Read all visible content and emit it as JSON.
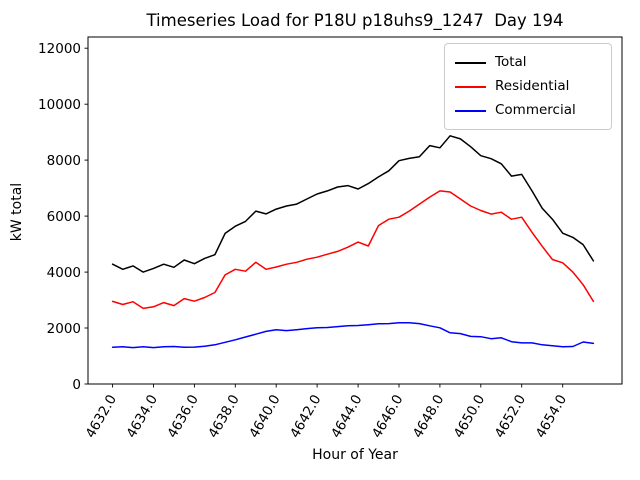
{
  "chart_data": {
    "type": "line",
    "title": "Timeseries Load for P18U p18uhs9_1247  Day 194",
    "xlabel": "Hour of Year",
    "ylabel": "kW total",
    "xlim": [
      4630.8,
      4656.9
    ],
    "ylim": [
      0,
      12400
    ],
    "grid": false,
    "legend_position": "upper right",
    "x_ticks": [
      4632,
      4634,
      4636,
      4638,
      4640,
      4642,
      4644,
      4646,
      4648,
      4650,
      4652,
      4654
    ],
    "x_tick_labels": [
      "4632.0",
      "4634.0",
      "4636.0",
      "4638.0",
      "4640.0",
      "4642.0",
      "4644.0",
      "4646.0",
      "4648.0",
      "4650.0",
      "4652.0",
      "4654.0"
    ],
    "y_ticks": [
      0,
      2000,
      4000,
      6000,
      8000,
      10000,
      12000
    ],
    "y_tick_labels": [
      "0",
      "2000",
      "4000",
      "6000",
      "8000",
      "10000",
      "12000"
    ],
    "x": [
      4632.0,
      4632.5,
      4633.0,
      4633.5,
      4634.0,
      4634.5,
      4635.0,
      4635.5,
      4636.0,
      4636.5,
      4637.0,
      4637.5,
      4638.0,
      4638.5,
      4639.0,
      4639.5,
      4640.0,
      4640.5,
      4641.0,
      4641.5,
      4642.0,
      4642.5,
      4643.0,
      4643.5,
      4644.0,
      4644.5,
      4645.0,
      4645.5,
      4646.0,
      4646.5,
      4647.0,
      4647.5,
      4648.0,
      4648.5,
      4649.0,
      4649.5,
      4650.0,
      4650.5,
      4651.0,
      4651.5,
      4652.0,
      4652.5,
      4653.0,
      4653.5,
      4654.0,
      4654.5,
      4655.0,
      4655.5
    ],
    "series": [
      {
        "name": "Total",
        "color": "#000000",
        "values": [
          4280,
          4100,
          4220,
          4000,
          4130,
          4280,
          4170,
          4430,
          4300,
          4490,
          4620,
          5380,
          5640,
          5810,
          6180,
          6080,
          6250,
          6360,
          6430,
          6610,
          6790,
          6900,
          7040,
          7090,
          6970,
          7160,
          7400,
          7620,
          7980,
          8060,
          8120,
          8520,
          8440,
          8870,
          8760,
          8480,
          8160,
          8050,
          7870,
          7430,
          7490,
          6900,
          6280,
          5890,
          5390,
          5240,
          4980,
          4400
        ]
      },
      {
        "name": "Residential",
        "color": "#ff0000",
        "values": [
          2950,
          2840,
          2940,
          2700,
          2760,
          2910,
          2800,
          3050,
          2960,
          3090,
          3270,
          3900,
          4100,
          4030,
          4350,
          4100,
          4180,
          4280,
          4350,
          4460,
          4530,
          4640,
          4740,
          4890,
          5070,
          4930,
          5660,
          5890,
          5960,
          6180,
          6430,
          6680,
          6900,
          6860,
          6610,
          6360,
          6200,
          6070,
          6140,
          5890,
          5960,
          5420,
          4920,
          4450,
          4330,
          4000,
          3550,
          2950
        ]
      },
      {
        "name": "Commercial",
        "color": "#0000ff",
        "values": [
          1310,
          1330,
          1300,
          1330,
          1300,
          1330,
          1340,
          1310,
          1320,
          1350,
          1400,
          1490,
          1580,
          1680,
          1780,
          1880,
          1940,
          1910,
          1940,
          1980,
          2010,
          2020,
          2050,
          2080,
          2090,
          2120,
          2150,
          2160,
          2190,
          2190,
          2160,
          2080,
          2010,
          1830,
          1800,
          1700,
          1690,
          1620,
          1650,
          1510,
          1470,
          1470,
          1400,
          1370,
          1330,
          1340,
          1500,
          1450
        ]
      }
    ]
  }
}
